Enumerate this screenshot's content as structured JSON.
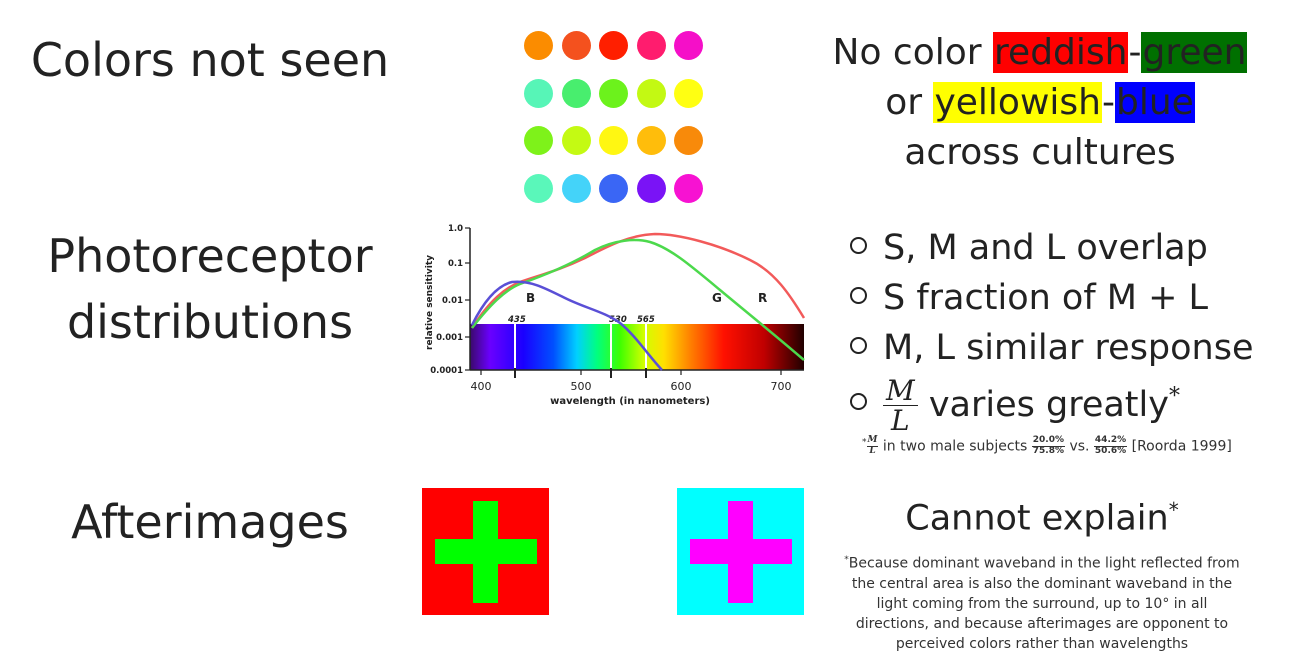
{
  "rows": {
    "colors_title": "Colors not seen",
    "photo_title_1": "Photoreceptor",
    "photo_title_2": "distributions",
    "after_title": "Afterimages"
  },
  "dot_grid": [
    [
      "#fb8c00",
      "#f4511e",
      "#ff1f00",
      "#ff1c6e",
      "#f50fc8"
    ],
    [
      "#57f5b7",
      "#48ee6e",
      "#6cf21c",
      "#c3f913",
      "#ffff12"
    ],
    [
      "#7ef21a",
      "#c4fa13",
      "#fff712",
      "#ffbd0b",
      "#f88a0a"
    ],
    [
      "#5af7ba",
      "#44d3f9",
      "#3a66f5",
      "#7a13f6",
      "#f712d2"
    ]
  ],
  "no_color": {
    "prefix": "No color ",
    "reddish": "reddish",
    "dash1": "-",
    "green": "green",
    "or": "or ",
    "yellowish": "yellowish",
    "dash2": "-",
    "blue": "blue",
    "line3": "across cultures",
    "colors": {
      "reddish": "#ff0000",
      "green": "#007000",
      "yellowish": "#ffff00",
      "blue": "#0000ff"
    }
  },
  "sensitivity_chart": {
    "ylabel": "relative sensitivity",
    "xlabel": "wavelength (in nanometers)",
    "y_ticks": [
      "1.0",
      "0.1",
      "0.01",
      "0.001",
      "0.0001"
    ],
    "x_ticks": [
      "400",
      "500",
      "600",
      "700"
    ],
    "peak_labels": [
      "435",
      "530",
      "565"
    ],
    "curve_labels": [
      "B",
      "G",
      "R"
    ],
    "curve_colors": {
      "B": "#5a4fd6",
      "G": "#4cd94c",
      "R": "#f25a5a"
    }
  },
  "bullets": [
    "S, M and L overlap",
    "S fraction of M + L",
    "M, L similar response",
    "varies greatly"
  ],
  "ratio": {
    "num": "M",
    "den": "L",
    "star": "*"
  },
  "footnote": {
    "star": "*",
    "text": "in two male subjects",
    "s1_num": "20.0%",
    "s1_den": "75.8%",
    "vs": "vs.",
    "s2_num": "44.2%",
    "s2_den": "50.6%",
    "cite": "[Roorda 1999]"
  },
  "afterimages": {
    "box1": {
      "bg": "#ff0000",
      "cross": "#00ff00"
    },
    "box2": {
      "bg": "#00ffff",
      "cross": "#ff00ff"
    },
    "cannot": "Cannot explain",
    "star": "*",
    "note_star": "*",
    "note": "Because dominant waveband in the light reflected from the central area is also the dominant waveband in the light coming from the surround, up to 10° in all directions, and because afterimages are opponent to perceived colors rather than wavelengths"
  }
}
